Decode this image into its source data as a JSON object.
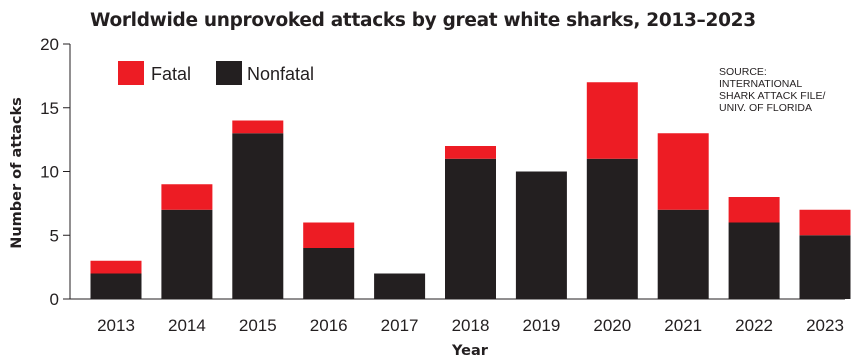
{
  "chart_data": {
    "type": "bar",
    "stacked": true,
    "title": "Worldwide unprovoked attacks by great white sharks, 2013–2023",
    "xlabel": "Year",
    "ylabel": "Number of attacks",
    "ylim": [
      0,
      20
    ],
    "yticks": [
      "0",
      "5",
      "10",
      "15",
      "20"
    ],
    "categories": [
      "2013",
      "2014",
      "2015",
      "2016",
      "2017",
      "2018",
      "2019",
      "2020",
      "2021",
      "2022",
      "2023"
    ],
    "series": [
      {
        "name": "Nonfatal",
        "color": "#231f20",
        "values": [
          2,
          7,
          13,
          4,
          2,
          11,
          10,
          11,
          7,
          6,
          5
        ]
      },
      {
        "name": "Fatal",
        "color": "#ed1c24",
        "values": [
          1,
          2,
          1,
          2,
          0,
          1,
          0,
          6,
          6,
          2,
          2
        ]
      }
    ],
    "legend": {
      "placement": "top-left",
      "order": [
        "Fatal",
        "Nonfatal"
      ]
    },
    "grid": false,
    "source": "SOURCE: INTERNATIONAL SHARK ATTACK FILE/ UNIV. OF FLORIDA"
  }
}
